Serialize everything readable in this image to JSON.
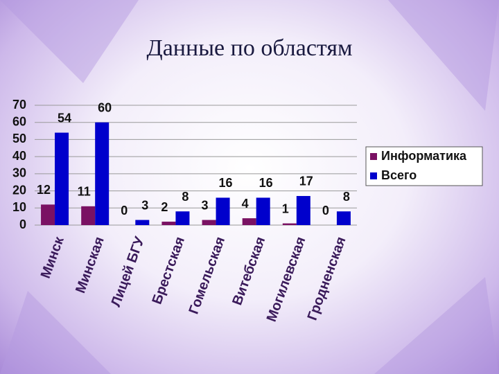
{
  "chart_data": {
    "type": "bar",
    "title": "Данные по областям",
    "categories": [
      "Минск",
      "Минская",
      "Лицей БГУ",
      "Брестская",
      "Гомельская",
      "Витебская",
      "Могилевская",
      "Гродненская"
    ],
    "series": [
      {
        "name": "Информатика",
        "color": "#7a1163",
        "values": [
          12,
          11,
          0,
          2,
          3,
          4,
          1,
          0
        ]
      },
      {
        "name": "Всего",
        "color": "#0000cc",
        "values": [
          54,
          60,
          3,
          8,
          16,
          16,
          17,
          8
        ]
      }
    ],
    "ylim": [
      0,
      70
    ],
    "yticks": [
      0,
      10,
      20,
      30,
      40,
      50,
      60,
      70
    ],
    "grid": true,
    "legend": "right"
  }
}
